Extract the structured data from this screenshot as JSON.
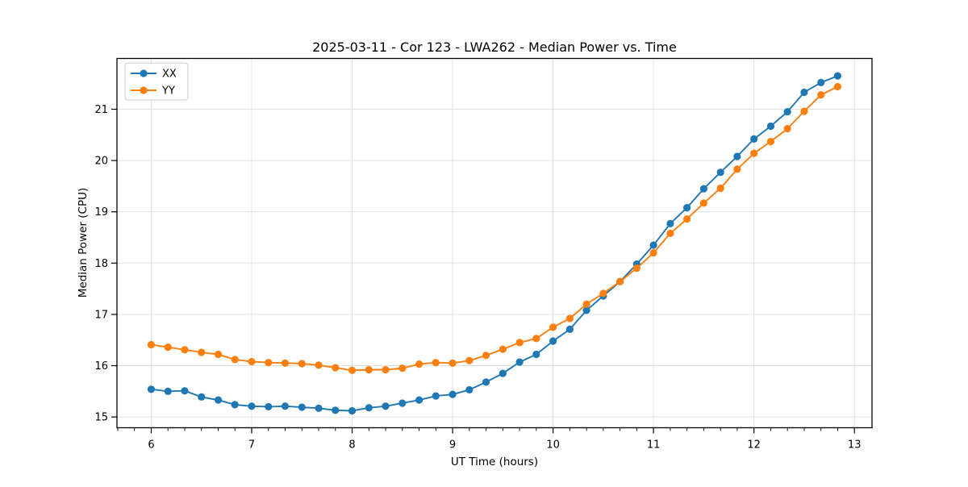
{
  "chart_data": {
    "type": "line",
    "title": "2025-03-11 - Cor 123 - LWA262 - Median Power vs. Time",
    "xlabel": "UT Time (hours)",
    "ylabel": "Median Power (CPU)",
    "xlim": [
      5.659,
      13.175
    ],
    "ylim": [
      14.79,
      21.99
    ],
    "xticks": [
      6,
      7,
      8,
      9,
      10,
      11,
      12,
      13
    ],
    "yticks": [
      15,
      16,
      17,
      18,
      19,
      20,
      21
    ],
    "x_minor_step": 0.166667,
    "grid": true,
    "legend": {
      "position": "upper-left",
      "entries": [
        "XX",
        "YY"
      ]
    },
    "colors": {
      "xx": "#1f77b4",
      "yy": "#ff7f0e",
      "grid": "#e0e0e0",
      "spine": "#000000"
    },
    "x": [
      6.0,
      6.167,
      6.333,
      6.5,
      6.667,
      6.833,
      7.0,
      7.167,
      7.333,
      7.5,
      7.667,
      7.833,
      8.0,
      8.167,
      8.333,
      8.5,
      8.667,
      8.833,
      9.0,
      9.167,
      9.333,
      9.5,
      9.667,
      9.833,
      10.0,
      10.167,
      10.333,
      10.5,
      10.667,
      10.833,
      11.0,
      11.167,
      11.333,
      11.5,
      11.667,
      11.833,
      12.0,
      12.167,
      12.333,
      12.5,
      12.667,
      12.833
    ],
    "series": [
      {
        "name": "XX",
        "color": "#1f77b4",
        "values": [
          15.54,
          15.5,
          15.51,
          15.39,
          15.33,
          15.24,
          15.21,
          15.2,
          15.21,
          15.19,
          15.17,
          15.13,
          15.12,
          15.18,
          15.21,
          15.27,
          15.33,
          15.41,
          15.44,
          15.53,
          15.68,
          15.85,
          16.07,
          16.22,
          16.48,
          16.71,
          17.08,
          17.36,
          17.64,
          17.98,
          18.35,
          18.77,
          19.08,
          19.45,
          19.77,
          20.08,
          20.42,
          20.67,
          20.95,
          21.33,
          21.52,
          21.65
        ]
      },
      {
        "name": "YY",
        "color": "#ff7f0e",
        "values": [
          16.41,
          16.36,
          16.31,
          16.26,
          16.22,
          16.12,
          16.08,
          16.06,
          16.05,
          16.04,
          16.01,
          15.96,
          15.91,
          15.92,
          15.92,
          15.95,
          16.03,
          16.06,
          16.05,
          16.1,
          16.2,
          16.32,
          16.45,
          16.53,
          16.75,
          16.92,
          17.2,
          17.41,
          17.64,
          17.9,
          18.2,
          18.58,
          18.86,
          19.17,
          19.46,
          19.83,
          20.14,
          20.37,
          20.62,
          20.96,
          21.28,
          21.44
        ]
      }
    ]
  }
}
